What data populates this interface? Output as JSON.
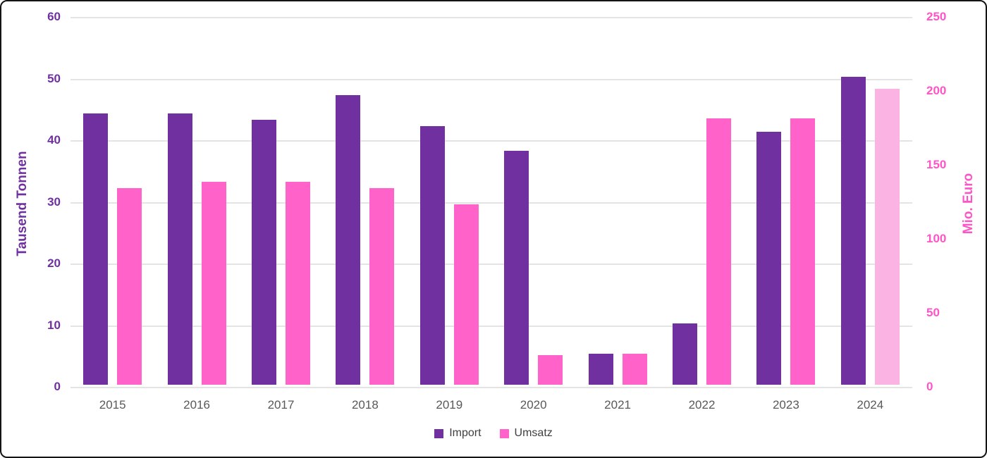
{
  "chart_data": {
    "type": "bar",
    "title": "",
    "categories": [
      "2015",
      "2016",
      "2017",
      "2018",
      "2019",
      "2020",
      "2021",
      "2022",
      "2023",
      "2024"
    ],
    "series": [
      {
        "name": "Import",
        "axis": "left",
        "unit": "Tausend Tonnen",
        "color": "#7030a0",
        "values": [
          44,
          44,
          43,
          47,
          42,
          38,
          5,
          10,
          41,
          50
        ]
      },
      {
        "name": "Umsatz",
        "axis": "right",
        "unit": "Mio. Euro",
        "color": "#ff63c9",
        "values": [
          133,
          137,
          137,
          133,
          122,
          20,
          21,
          180,
          180,
          200
        ],
        "point_color_overrides": {
          "9": "#fbb3e3"
        }
      }
    ],
    "left_axis": {
      "label": "Tausend Tonnen",
      "min": 0,
      "max": 60,
      "step": 10,
      "ticks": [
        0,
        10,
        20,
        30,
        40,
        50,
        60
      ],
      "text_color": "#7030a0"
    },
    "right_axis": {
      "label": "Mio. Euro",
      "min": 0,
      "max": 250,
      "step": 50,
      "ticks": [
        0,
        50,
        100,
        150,
        200,
        250
      ],
      "text_color": "#ff54c6"
    },
    "grid": true,
    "legend_position": "bottom",
    "legend": [
      "Import",
      "Umsatz"
    ],
    "colors": {
      "gridline": "#e4e4e4",
      "x_label_text": "#595959",
      "legend_text": "#3f3f3f",
      "frame_border": "#141414"
    }
  }
}
